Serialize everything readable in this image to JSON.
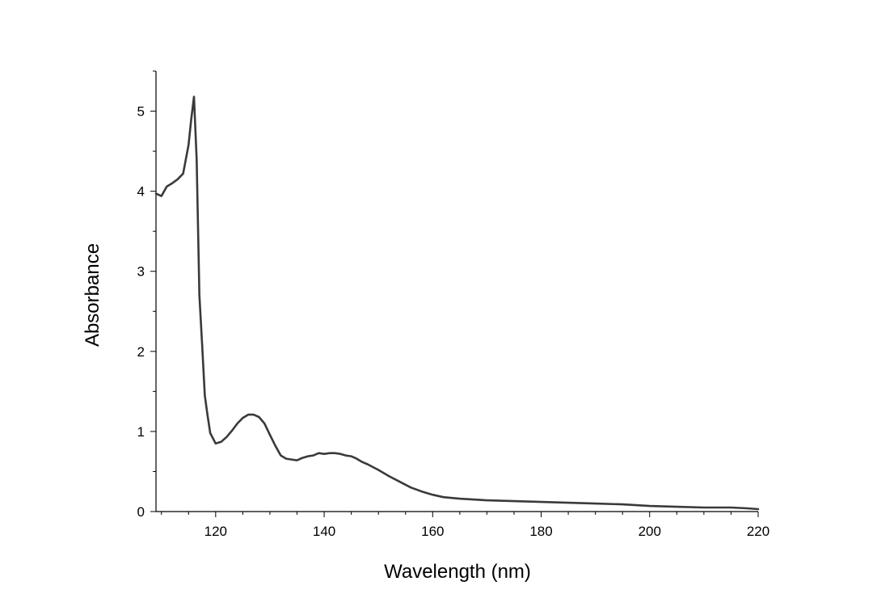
{
  "chart_data": {
    "type": "line",
    "title": "",
    "xlabel": "Wavelength (nm)",
    "ylabel": "Absorbance",
    "xlim": [
      109,
      220
    ],
    "ylim": [
      0,
      5.5
    ],
    "x_ticks": [
      120,
      140,
      160,
      180,
      200,
      220
    ],
    "y_ticks": [
      0,
      1,
      2,
      3,
      4,
      5
    ],
    "grid": false,
    "legend": "none",
    "line_color": "#3a3a3a",
    "series": [
      {
        "x": [
          109,
          110,
          111,
          112,
          113,
          114,
          115,
          115.5,
          116,
          116.5,
          117,
          117.5,
          118,
          118.5,
          119,
          120,
          121,
          122,
          123,
          124,
          125,
          126,
          127,
          128,
          129,
          130,
          131,
          132,
          133,
          134,
          135,
          136,
          137,
          138,
          139,
          140,
          141,
          142,
          143,
          144,
          145,
          146,
          147,
          148,
          150,
          152,
          154,
          156,
          158,
          160,
          162,
          165,
          170,
          175,
          180,
          185,
          190,
          195,
          200,
          205,
          210,
          215,
          218,
          220
        ],
        "y": [
          3.97,
          3.94,
          4.06,
          4.1,
          4.15,
          4.22,
          4.58,
          4.9,
          5.18,
          4.4,
          2.7,
          2.1,
          1.45,
          1.2,
          0.98,
          0.85,
          0.87,
          0.93,
          1.01,
          1.1,
          1.17,
          1.21,
          1.21,
          1.18,
          1.1,
          0.96,
          0.82,
          0.7,
          0.66,
          0.65,
          0.64,
          0.67,
          0.69,
          0.7,
          0.73,
          0.72,
          0.73,
          0.73,
          0.72,
          0.7,
          0.69,
          0.66,
          0.62,
          0.59,
          0.52,
          0.44,
          0.37,
          0.3,
          0.25,
          0.21,
          0.18,
          0.16,
          0.14,
          0.13,
          0.12,
          0.11,
          0.1,
          0.09,
          0.07,
          0.06,
          0.05,
          0.05,
          0.04,
          0.03
        ]
      }
    ]
  }
}
